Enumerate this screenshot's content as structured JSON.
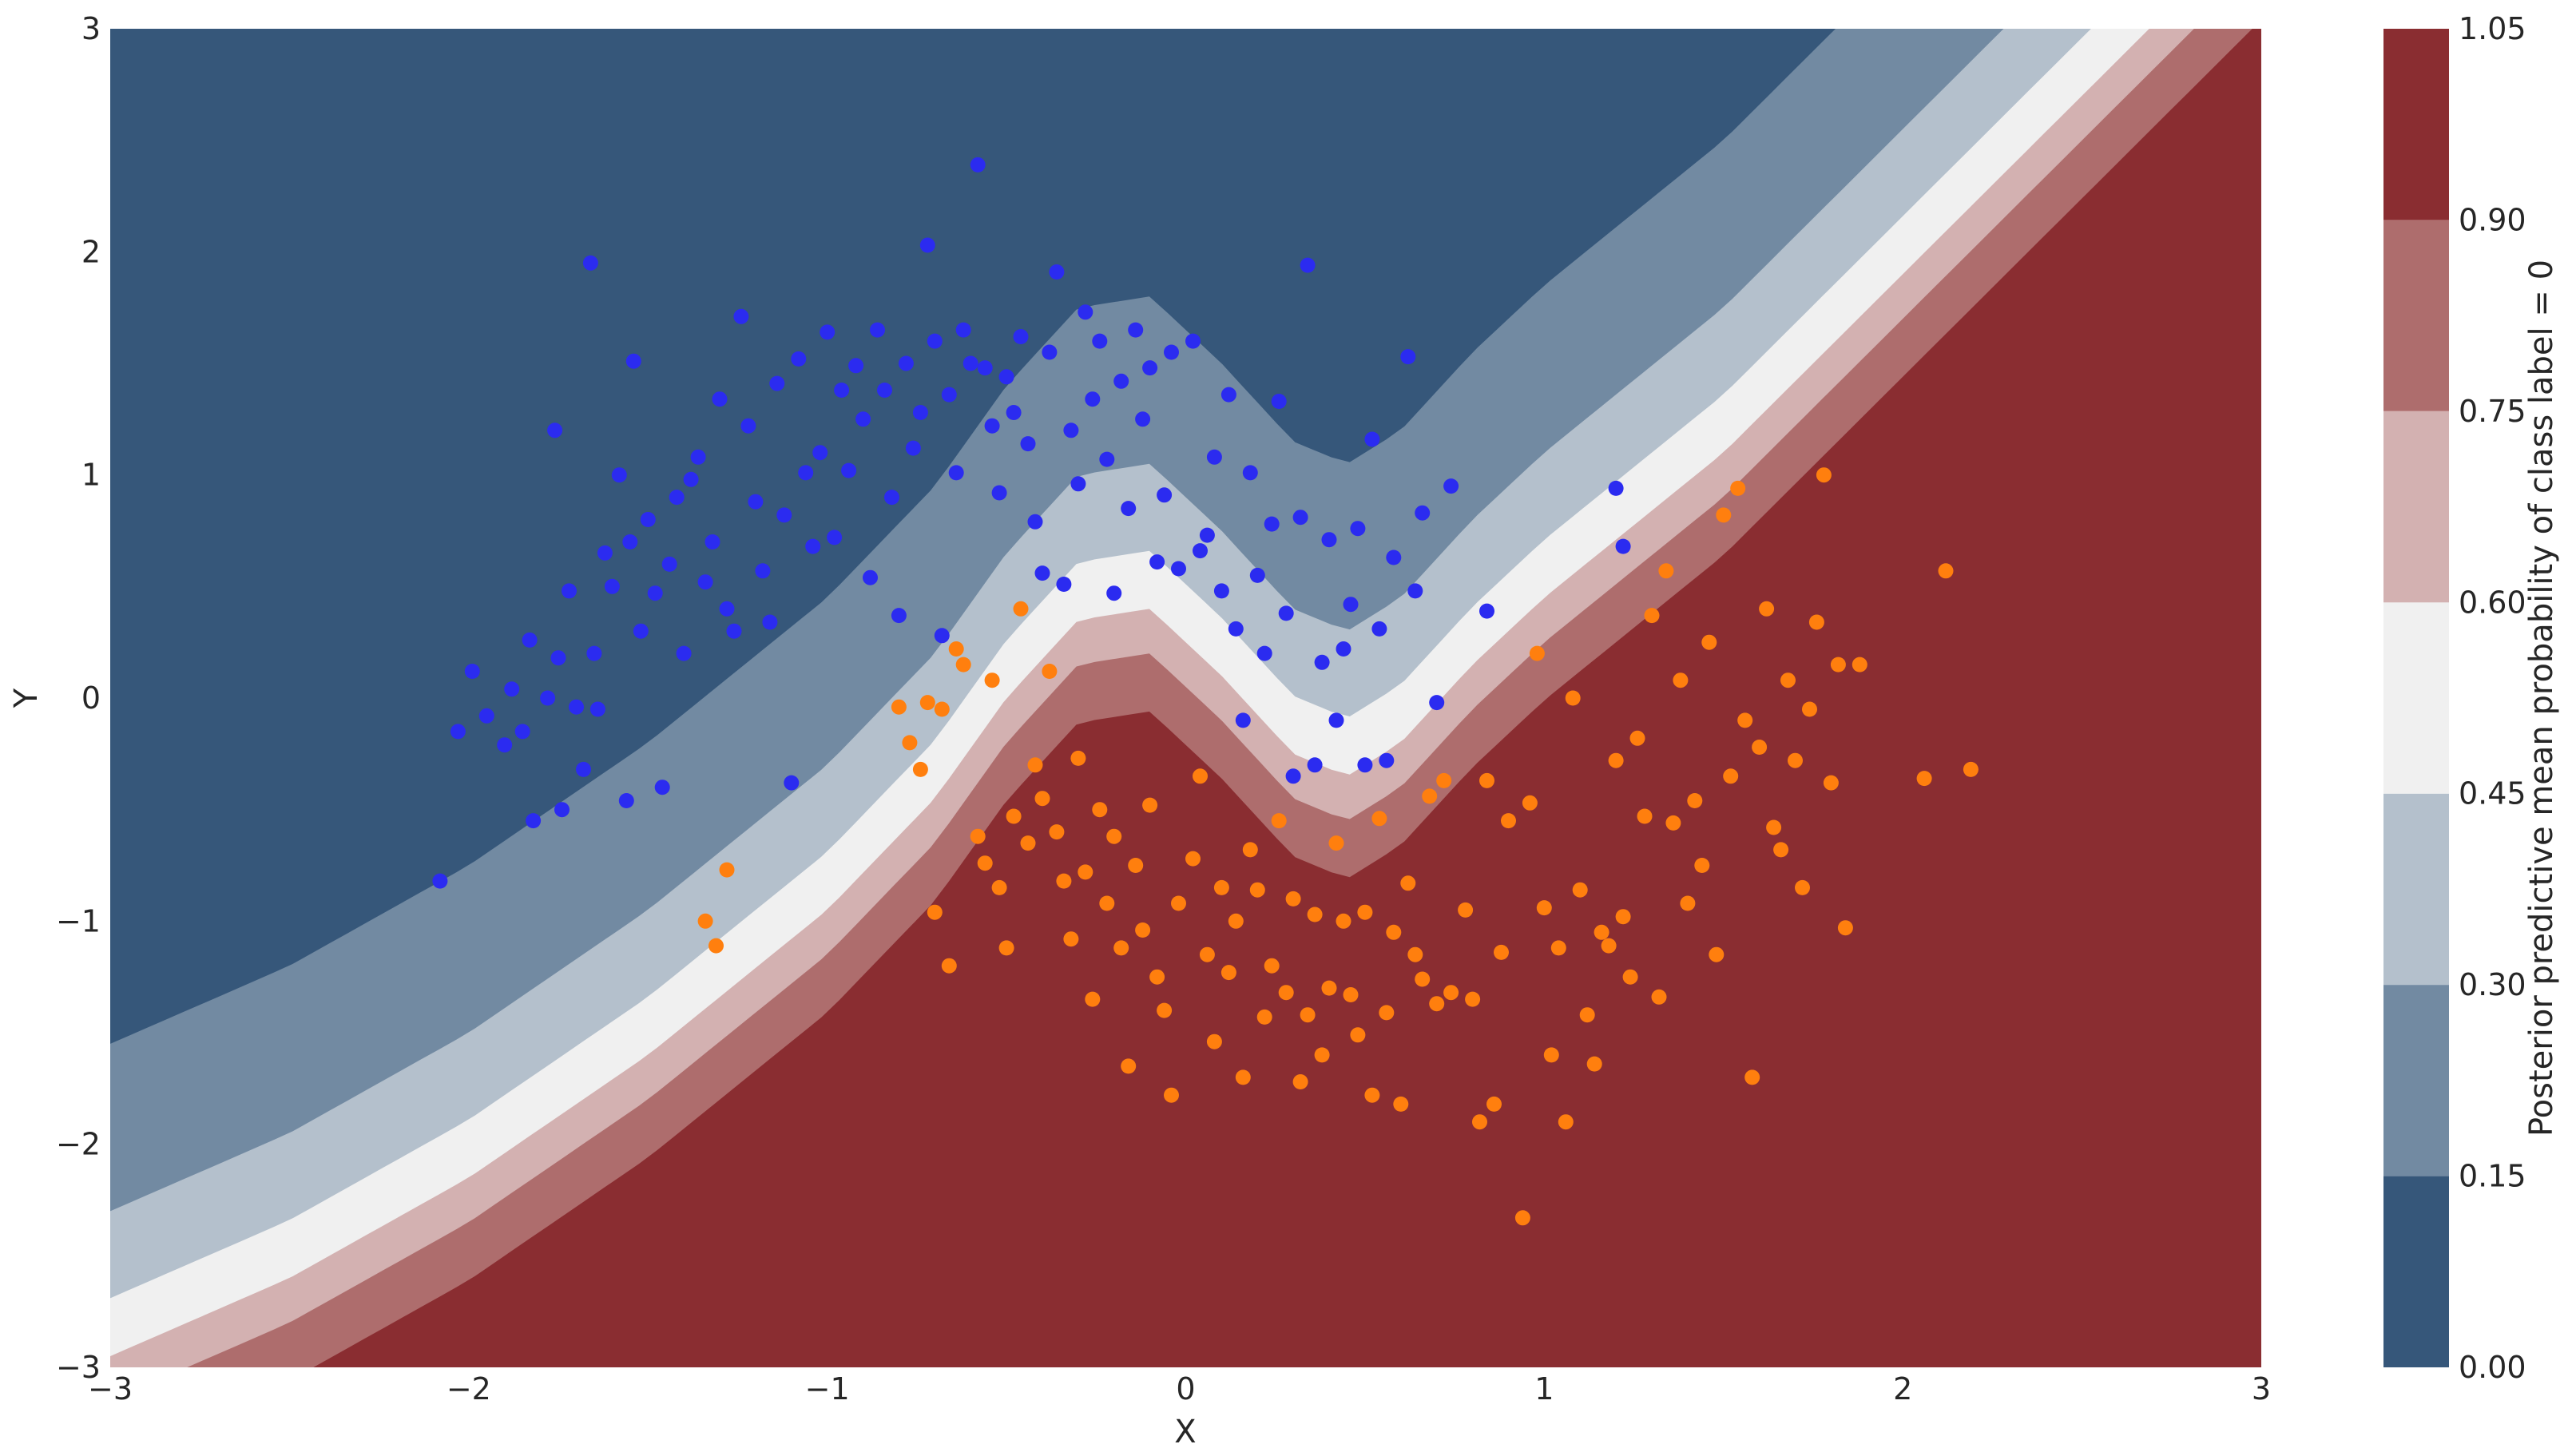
{
  "chart_data": {
    "type": "contour-scatter",
    "title": "",
    "xlabel": "X",
    "ylabel": "Y",
    "xlim": [
      -3,
      3
    ],
    "ylim": [
      -3,
      3
    ],
    "x_ticks": [
      -3,
      -2,
      -1,
      0,
      1,
      2,
      3
    ],
    "y_ticks": [
      -3,
      -2,
      -1,
      0,
      1,
      2,
      3
    ],
    "x_tick_labels": [
      "−3",
      "−2",
      "−1",
      "0",
      "1",
      "2",
      "3"
    ],
    "y_tick_labels": [
      "−3",
      "−2",
      "−1",
      "0",
      "1",
      "2",
      "3"
    ],
    "grid": false,
    "colorbar": {
      "label": "Posterior predictive mean probability of class label = 0",
      "levels": [
        0.0,
        0.15,
        0.3,
        0.45,
        0.6,
        0.75,
        0.9,
        1.05
      ],
      "tick_labels": [
        "0.00",
        "0.15",
        "0.30",
        "0.45",
        "0.60",
        "0.75",
        "0.90",
        "1.05"
      ],
      "colors": [
        "#36577a",
        "#728aa2",
        "#b4c0cc",
        "#f0f0f0",
        "#d3b1b1",
        "#ae6d6d",
        "#8a2d31"
      ]
    },
    "decision_boundary": {
      "x": [
        -3.0,
        -2.5,
        -2.0,
        -1.5,
        -1.0,
        -0.7,
        -0.5,
        -0.3,
        -0.1,
        0.1,
        0.3,
        0.45,
        0.6,
        0.8,
        1.0,
        1.5,
        2.0,
        2.5,
        3.0
      ],
      "y": [
        -3.05,
        -2.7,
        -2.25,
        -1.7,
        -1.05,
        -0.55,
        -0.1,
        0.25,
        0.3,
        0.0,
        -0.35,
        -0.45,
        -0.3,
        0.05,
        0.35,
        1.0,
        1.8,
        2.6,
        3.4
      ],
      "level_offsets": [
        1.5,
        0.75,
        0.36,
        0.1,
        -0.1,
        -0.36,
        -0.75
      ]
    },
    "series": [
      {
        "name": "",
        "color": "#2b2bf0",
        "points": [
          [
            -2.08,
            -0.82
          ],
          [
            -2.03,
            -0.15
          ],
          [
            -1.99,
            0.12
          ],
          [
            -1.95,
            -0.08
          ],
          [
            -1.9,
            -0.21
          ],
          [
            -1.88,
            0.04
          ],
          [
            -1.85,
            -0.15
          ],
          [
            -1.83,
            0.26
          ],
          [
            -1.82,
            -0.55
          ],
          [
            -1.78,
            0.0
          ],
          [
            -1.76,
            1.2
          ],
          [
            -1.75,
            0.18
          ],
          [
            -1.74,
            -0.5
          ],
          [
            -1.72,
            0.48
          ],
          [
            -1.7,
            -0.04
          ],
          [
            -1.68,
            -0.32
          ],
          [
            -1.66,
            1.95
          ],
          [
            -1.65,
            0.2
          ],
          [
            -1.64,
            -0.05
          ],
          [
            -1.62,
            0.65
          ],
          [
            -1.6,
            0.5
          ],
          [
            -1.58,
            1.0
          ],
          [
            -1.56,
            -0.46
          ],
          [
            -1.55,
            0.7
          ],
          [
            -1.54,
            1.51
          ],
          [
            -1.52,
            0.3
          ],
          [
            -1.5,
            0.8
          ],
          [
            -1.48,
            0.47
          ],
          [
            -1.46,
            -0.4
          ],
          [
            -1.44,
            0.6
          ],
          [
            -1.42,
            0.9
          ],
          [
            -1.4,
            0.2
          ],
          [
            -1.38,
            0.98
          ],
          [
            -1.36,
            1.08
          ],
          [
            -1.34,
            0.52
          ],
          [
            -1.32,
            0.7
          ],
          [
            -1.3,
            1.34
          ],
          [
            -1.28,
            0.4
          ],
          [
            -1.26,
            0.3
          ],
          [
            -1.24,
            1.71
          ],
          [
            -1.22,
            1.22
          ],
          [
            -1.2,
            0.88
          ],
          [
            -1.18,
            0.57
          ],
          [
            -1.16,
            0.34
          ],
          [
            -1.14,
            1.41
          ],
          [
            -1.12,
            0.82
          ],
          [
            -1.1,
            -0.38
          ],
          [
            -1.08,
            1.52
          ],
          [
            -1.06,
            1.01
          ],
          [
            -1.04,
            0.68
          ],
          [
            -1.02,
            1.1
          ],
          [
            -1.0,
            1.64
          ],
          [
            -0.98,
            0.72
          ],
          [
            -0.96,
            1.38
          ],
          [
            -0.94,
            1.02
          ],
          [
            -0.92,
            1.49
          ],
          [
            -0.9,
            1.25
          ],
          [
            -0.88,
            0.54
          ],
          [
            -0.86,
            1.65
          ],
          [
            -0.84,
            1.38
          ],
          [
            -0.82,
            0.9
          ],
          [
            -0.8,
            0.37
          ],
          [
            -0.78,
            1.5
          ],
          [
            -0.76,
            1.12
          ],
          [
            -0.74,
            1.28
          ],
          [
            -0.72,
            2.03
          ],
          [
            -0.7,
            1.6
          ],
          [
            -0.68,
            0.28
          ],
          [
            -0.66,
            1.36
          ],
          [
            -0.64,
            1.01
          ],
          [
            -0.62,
            1.65
          ],
          [
            -0.6,
            1.5
          ],
          [
            -0.58,
            2.39
          ],
          [
            -0.56,
            1.48
          ],
          [
            -0.54,
            1.22
          ],
          [
            -0.52,
            0.92
          ],
          [
            -0.5,
            1.44
          ],
          [
            -0.48,
            1.28
          ],
          [
            -0.46,
            1.62
          ],
          [
            -0.44,
            1.14
          ],
          [
            -0.42,
            0.79
          ],
          [
            -0.4,
            0.56
          ],
          [
            -0.38,
            1.55
          ],
          [
            -0.36,
            1.91
          ],
          [
            -0.34,
            0.51
          ],
          [
            -0.32,
            1.2
          ],
          [
            -0.3,
            0.96
          ],
          [
            -0.28,
            1.73
          ],
          [
            -0.26,
            1.34
          ],
          [
            -0.24,
            1.6
          ],
          [
            -0.22,
            1.07
          ],
          [
            -0.2,
            0.47
          ],
          [
            -0.18,
            1.42
          ],
          [
            -0.16,
            0.85
          ],
          [
            -0.14,
            1.65
          ],
          [
            -0.12,
            1.25
          ],
          [
            -0.1,
            1.48
          ],
          [
            -0.08,
            0.61
          ],
          [
            -0.06,
            0.91
          ],
          [
            -0.04,
            1.55
          ],
          [
            -0.02,
            0.58
          ],
          [
            0.02,
            1.6
          ],
          [
            0.04,
            0.66
          ],
          [
            0.06,
            0.73
          ],
          [
            0.08,
            1.08
          ],
          [
            0.1,
            0.48
          ],
          [
            0.12,
            1.36
          ],
          [
            0.14,
            0.31
          ],
          [
            0.16,
            -0.1
          ],
          [
            0.18,
            1.01
          ],
          [
            0.2,
            0.55
          ],
          [
            0.22,
            0.2
          ],
          [
            0.24,
            0.78
          ],
          [
            0.26,
            1.33
          ],
          [
            0.28,
            0.38
          ],
          [
            0.3,
            -0.35
          ],
          [
            0.32,
            0.81
          ],
          [
            0.34,
            1.94
          ],
          [
            0.36,
            -0.3
          ],
          [
            0.38,
            0.16
          ],
          [
            0.4,
            0.71
          ],
          [
            0.42,
            -0.1
          ],
          [
            0.44,
            0.22
          ],
          [
            0.46,
            0.42
          ],
          [
            0.48,
            0.76
          ],
          [
            0.5,
            -0.3
          ],
          [
            0.52,
            1.16
          ],
          [
            0.54,
            0.31
          ],
          [
            0.56,
            -0.28
          ],
          [
            0.58,
            0.63
          ],
          [
            0.62,
            1.53
          ],
          [
            0.64,
            0.48
          ],
          [
            0.66,
            0.83
          ],
          [
            0.7,
            -0.02
          ],
          [
            0.74,
            0.95
          ],
          [
            0.84,
            0.39
          ],
          [
            1.2,
            0.94
          ],
          [
            1.22,
            0.68
          ]
        ]
      },
      {
        "name": "",
        "color": "#ff7f0e",
        "points": [
          [
            -1.34,
            -1.0
          ],
          [
            -1.31,
            -1.11
          ],
          [
            -1.28,
            -0.77
          ],
          [
            -0.8,
            -0.04
          ],
          [
            -0.77,
            -0.2
          ],
          [
            -0.74,
            -0.32
          ],
          [
            -0.72,
            -0.02
          ],
          [
            -0.7,
            -0.96
          ],
          [
            -0.68,
            -0.05
          ],
          [
            -0.66,
            -1.2
          ],
          [
            -0.64,
            0.22
          ],
          [
            -0.62,
            0.15
          ],
          [
            -0.58,
            -0.62
          ],
          [
            -0.56,
            -0.74
          ],
          [
            -0.54,
            0.08
          ],
          [
            -0.52,
            -0.85
          ],
          [
            -0.5,
            -1.12
          ],
          [
            -0.48,
            -0.53
          ],
          [
            -0.46,
            0.4
          ],
          [
            -0.44,
            -0.65
          ],
          [
            -0.42,
            -0.3
          ],
          [
            -0.4,
            -0.45
          ],
          [
            -0.38,
            0.12
          ],
          [
            -0.36,
            -0.6
          ],
          [
            -0.34,
            -0.82
          ],
          [
            -0.32,
            -1.08
          ],
          [
            -0.3,
            -0.27
          ],
          [
            -0.28,
            -0.78
          ],
          [
            -0.26,
            -1.35
          ],
          [
            -0.24,
            -0.5
          ],
          [
            -0.22,
            -0.92
          ],
          [
            -0.2,
            -0.62
          ],
          [
            -0.18,
            -1.12
          ],
          [
            -0.16,
            -1.65
          ],
          [
            -0.14,
            -0.75
          ],
          [
            -0.12,
            -1.04
          ],
          [
            -0.1,
            -0.48
          ],
          [
            -0.08,
            -1.25
          ],
          [
            -0.06,
            -1.4
          ],
          [
            -0.04,
            -1.78
          ],
          [
            -0.02,
            -0.92
          ],
          [
            0.02,
            -0.72
          ],
          [
            0.04,
            -0.35
          ],
          [
            0.06,
            -1.15
          ],
          [
            0.08,
            -1.54
          ],
          [
            0.1,
            -0.85
          ],
          [
            0.12,
            -1.23
          ],
          [
            0.14,
            -1.0
          ],
          [
            0.16,
            -1.7
          ],
          [
            0.18,
            -0.68
          ],
          [
            0.2,
            -0.86
          ],
          [
            0.22,
            -1.43
          ],
          [
            0.24,
            -1.2
          ],
          [
            0.26,
            -0.55
          ],
          [
            0.28,
            -1.32
          ],
          [
            0.3,
            -0.9
          ],
          [
            0.32,
            -1.72
          ],
          [
            0.34,
            -1.42
          ],
          [
            0.36,
            -0.97
          ],
          [
            0.38,
            -1.6
          ],
          [
            0.4,
            -1.3
          ],
          [
            0.42,
            -0.65
          ],
          [
            0.44,
            -1.0
          ],
          [
            0.46,
            -1.33
          ],
          [
            0.48,
            -1.51
          ],
          [
            0.5,
            -0.96
          ],
          [
            0.52,
            -1.78
          ],
          [
            0.54,
            -0.54
          ],
          [
            0.56,
            -1.41
          ],
          [
            0.58,
            -1.05
          ],
          [
            0.6,
            -1.82
          ],
          [
            0.62,
            -0.83
          ],
          [
            0.64,
            -1.15
          ],
          [
            0.66,
            -1.26
          ],
          [
            0.68,
            -0.44
          ],
          [
            0.7,
            -1.37
          ],
          [
            0.72,
            -0.37
          ],
          [
            0.74,
            -1.32
          ],
          [
            0.78,
            -0.95
          ],
          [
            0.8,
            -1.35
          ],
          [
            0.82,
            -1.9
          ],
          [
            0.84,
            -0.37
          ],
          [
            0.86,
            -1.82
          ],
          [
            0.88,
            -1.14
          ],
          [
            0.9,
            -0.55
          ],
          [
            0.94,
            -2.33
          ],
          [
            0.96,
            -0.47
          ],
          [
            0.98,
            0.2
          ],
          [
            1.0,
            -0.94
          ],
          [
            1.02,
            -1.6
          ],
          [
            1.04,
            -1.12
          ],
          [
            1.06,
            -1.9
          ],
          [
            1.08,
            0.0
          ],
          [
            1.1,
            -0.86
          ],
          [
            1.12,
            -1.42
          ],
          [
            1.14,
            -1.64
          ],
          [
            1.16,
            -1.05
          ],
          [
            1.18,
            -1.11
          ],
          [
            1.2,
            -0.28
          ],
          [
            1.22,
            -0.98
          ],
          [
            1.24,
            -1.25
          ],
          [
            1.26,
            -0.18
          ],
          [
            1.28,
            -0.53
          ],
          [
            1.3,
            0.37
          ],
          [
            1.32,
            -1.34
          ],
          [
            1.34,
            0.57
          ],
          [
            1.36,
            -0.56
          ],
          [
            1.38,
            0.08
          ],
          [
            1.4,
            -0.92
          ],
          [
            1.42,
            -0.46
          ],
          [
            1.44,
            -0.75
          ],
          [
            1.46,
            0.25
          ],
          [
            1.48,
            -1.15
          ],
          [
            1.5,
            0.82
          ],
          [
            1.52,
            -0.35
          ],
          [
            1.54,
            0.94
          ],
          [
            1.56,
            -0.1
          ],
          [
            1.58,
            -1.7
          ],
          [
            1.6,
            -0.22
          ],
          [
            1.62,
            0.4
          ],
          [
            1.64,
            -0.58
          ],
          [
            1.66,
            -0.68
          ],
          [
            1.68,
            0.08
          ],
          [
            1.7,
            -0.28
          ],
          [
            1.72,
            -0.85
          ],
          [
            1.74,
            -0.05
          ],
          [
            1.76,
            0.34
          ],
          [
            1.78,
            1.0
          ],
          [
            1.8,
            -0.38
          ],
          [
            1.82,
            0.15
          ],
          [
            1.84,
            -1.03
          ],
          [
            1.88,
            0.15
          ],
          [
            2.06,
            -0.36
          ],
          [
            2.12,
            0.57
          ],
          [
            2.19,
            -0.32
          ]
        ]
      }
    ]
  }
}
